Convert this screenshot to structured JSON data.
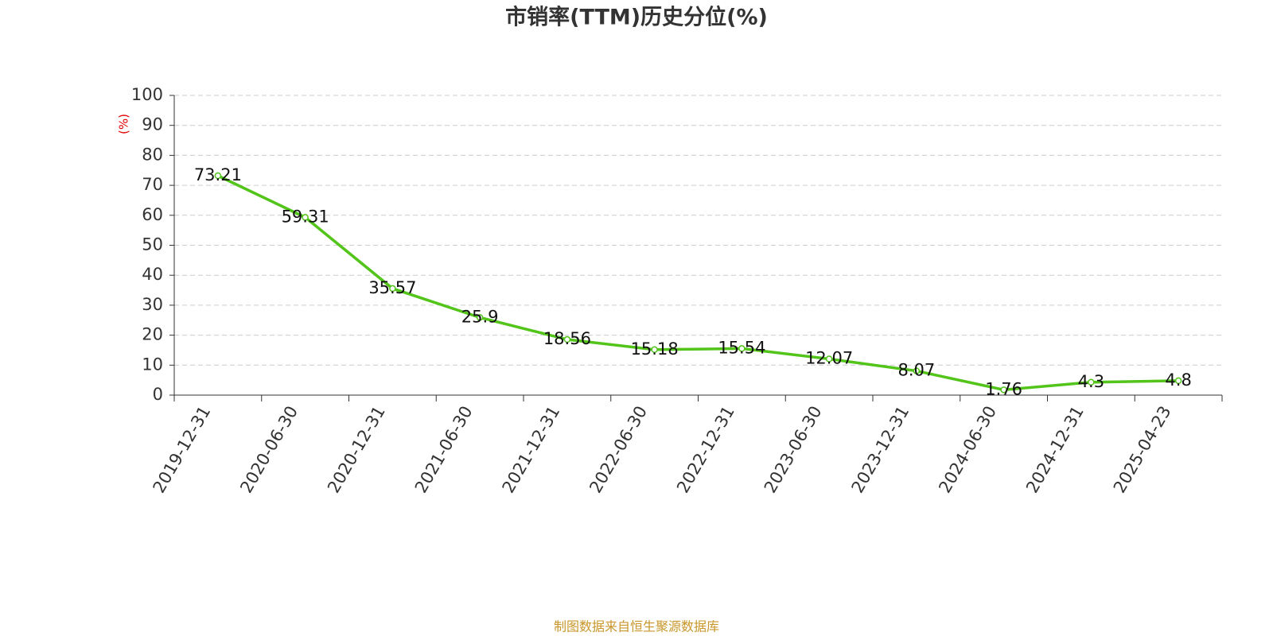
{
  "chart_data": {
    "type": "line",
    "title": "市销率(TTM)历史分位(%)",
    "y_label": "(%)",
    "categories": [
      "2019-12-31",
      "2020-06-30",
      "2020-12-31",
      "2021-06-30",
      "2021-12-31",
      "2022-06-30",
      "2022-12-31",
      "2023-06-30",
      "2023-12-31",
      "2024-06-30",
      "2024-12-31",
      "2025-04-23"
    ],
    "values": [
      73.21,
      59.31,
      35.57,
      25.9,
      18.56,
      15.18,
      15.54,
      12.07,
      8.07,
      1.76,
      4.3,
      4.8
    ],
    "color": "#52c41a",
    "ylim": [
      0,
      100
    ],
    "yticks": [
      0,
      10,
      20,
      30,
      40,
      50,
      60,
      70,
      80,
      90,
      100
    ],
    "grid": true,
    "source": "制图数据来自恒生聚源数据库"
  }
}
